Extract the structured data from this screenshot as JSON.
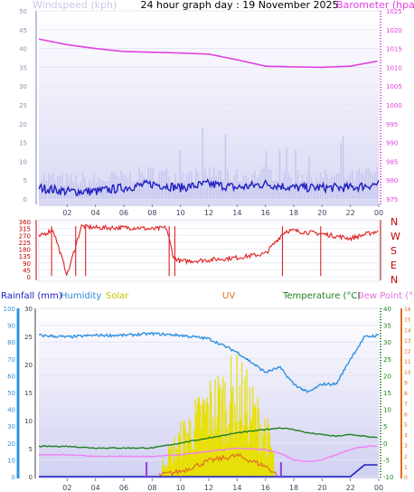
{
  "header": {
    "title": "24 hour graph day : 19 November 2025",
    "wind_label": "Windspeed (kph)",
    "baro_label": "Barometer (hpa)"
  },
  "x_hours": [
    "02",
    "04",
    "06",
    "08",
    "10",
    "12",
    "14",
    "16",
    "18",
    "20",
    "22",
    "00"
  ],
  "direction_letters": [
    "N",
    "W",
    "S",
    "E",
    "N"
  ],
  "bottom_labels": {
    "rain": "Rainfall (mm)",
    "humidity": "Humidity",
    "solar": "Solar",
    "uv": "UV",
    "temperature": "Temperature (°C)",
    "dewpoint": "Dew Point (°C)"
  },
  "colors": {
    "barometer": "#e040e0",
    "wind": "#2020c0",
    "gust": "#c8c8f0",
    "direction": "#e02020",
    "humidity": "#3090e0",
    "temperature": "#208020",
    "dewpoint": "#f080f0",
    "solar": "#e8e000",
    "uv": "#e07020",
    "rain": "#2020c0"
  },
  "chart_data": [
    {
      "type": "line",
      "title": "24 hour graph day : 19 November 2025",
      "x": [
        0,
        2,
        4,
        6,
        8,
        10,
        12,
        14,
        16,
        18,
        20,
        22,
        24
      ],
      "series": [
        {
          "name": "Barometer (hpa)",
          "values": [
            1017.5,
            1016.0,
            1015.0,
            1014.2,
            1014.0,
            1013.8,
            1013.5,
            1012.0,
            1010.3,
            1010.1,
            1010.0,
            1010.3,
            1011.7
          ]
        },
        {
          "name": "Windspeed (kph)",
          "values": [
            3,
            2,
            2,
            3,
            4,
            3,
            4,
            3,
            4,
            3,
            3,
            3,
            4
          ]
        }
      ],
      "y_left": {
        "label": "Windspeed (kph)",
        "ticks": [
          0,
          5,
          10,
          15,
          20,
          25,
          30,
          35,
          40,
          45,
          50
        ]
      },
      "y_right": {
        "label": "Barometer (hpa)",
        "ticks": [
          975,
          980,
          985,
          990,
          995,
          1000,
          1005,
          1010,
          1015,
          1020,
          1025
        ]
      },
      "x_ticks": [
        "02",
        "04",
        "06",
        "08",
        "10",
        "12",
        "14",
        "16",
        "18",
        "20",
        "22",
        "00"
      ]
    },
    {
      "type": "line",
      "x": [
        0,
        1,
        2,
        3,
        4,
        5,
        6,
        7,
        8,
        9,
        9.5,
        10,
        12,
        14,
        16,
        17.2,
        17.5,
        18,
        20,
        22,
        24
      ],
      "series": [
        {
          "name": "Wind Direction",
          "values": [
            260,
            310,
            10,
            330,
            320,
            320,
            320,
            320,
            310,
            320,
            130,
            100,
            110,
            125,
            150,
            280,
            300,
            300,
            280,
            250,
            300
          ]
        }
      ],
      "y_left": {
        "ticks": [
          0,
          45,
          90,
          135,
          180,
          225,
          270,
          315,
          360
        ]
      },
      "y_right_labels": [
        "N",
        "W",
        "S",
        "E",
        "N"
      ]
    },
    {
      "type": "line",
      "x": [
        0,
        2,
        4,
        6,
        8,
        10,
        12,
        14,
        16,
        17,
        18,
        19,
        20,
        21,
        22,
        23,
        24
      ],
      "series": [
        {
          "name": "Humidity",
          "values": [
            84,
            83,
            84,
            84,
            85,
            84,
            82,
            74,
            62,
            65,
            55,
            50,
            55,
            55,
            70,
            83,
            84
          ]
        },
        {
          "name": "Temperature (°C)",
          "values": [
            -1.0,
            -1.0,
            -1.5,
            -1.5,
            -1.5,
            0.0,
            1.5,
            3.0,
            4.0,
            4.5,
            4.0,
            3.0,
            2.5,
            2.0,
            2.5,
            2.0,
            1.5
          ]
        },
        {
          "name": "Dew Point (°C)",
          "values": [
            -3.5,
            -3.5,
            -4.0,
            -4.0,
            -4.0,
            -3.5,
            -2.5,
            -1.5,
            -2.0,
            -3.0,
            -5.0,
            -5.5,
            -5.0,
            -3.5,
            -2.0,
            -1.0,
            -1.0
          ]
        },
        {
          "name": "Solar",
          "values": [
            0,
            0,
            0,
            0,
            0,
            25,
            45,
            55,
            30,
            0,
            0,
            0,
            0,
            0,
            0,
            0,
            0
          ]
        },
        {
          "name": "UV",
          "values": [
            0,
            0,
            0,
            0,
            0,
            0.5,
            1.5,
            2.0,
            1.0,
            0,
            0,
            0,
            0,
            0,
            0,
            0,
            0
          ]
        },
        {
          "name": "Rainfall (mm)",
          "values": [
            0,
            0,
            0,
            0,
            0,
            0,
            0,
            0,
            0,
            0,
            0,
            0,
            0,
            0,
            0,
            0.7,
            0.7
          ]
        }
      ],
      "y_axes": {
        "rain": [
          0,
          1,
          2,
          3,
          4,
          5,
          6,
          7,
          8,
          9,
          10
        ],
        "humidity": [
          0,
          10,
          20,
          30,
          40,
          50,
          60,
          70,
          80,
          90,
          100
        ],
        "solar_scale": [
          0,
          5,
          10,
          15,
          20,
          25,
          30
        ],
        "temperature": [
          -10,
          -5,
          0,
          5,
          10,
          15,
          20,
          25,
          30,
          35,
          40
        ],
        "uv": [
          0,
          1,
          2,
          3,
          4,
          5,
          6,
          7,
          8,
          9,
          10,
          11,
          12,
          13,
          14,
          15,
          16
        ]
      },
      "x_ticks": [
        "02",
        "04",
        "06",
        "08",
        "10",
        "12",
        "14",
        "16",
        "18",
        "20",
        "22",
        "00"
      ]
    }
  ]
}
